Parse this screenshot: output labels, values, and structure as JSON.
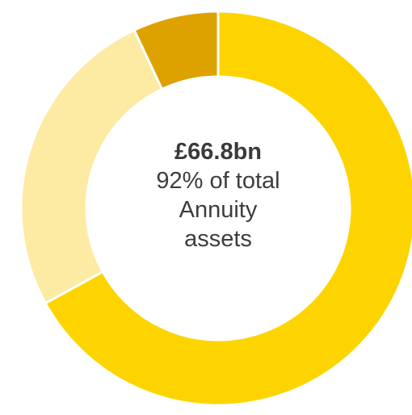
{
  "chart_data": {
    "type": "pie",
    "variant": "donut",
    "slices": [
      {
        "label": "",
        "value": 67,
        "color": "#FDD400"
      },
      {
        "label": "",
        "value": 26,
        "color": "#FDEAA3"
      },
      {
        "label": "",
        "value": 7,
        "color": "#DDA200"
      }
    ],
    "center_text": {
      "value": "£66.8bn",
      "description": "92% of total\nAnnuity\nassets"
    }
  }
}
